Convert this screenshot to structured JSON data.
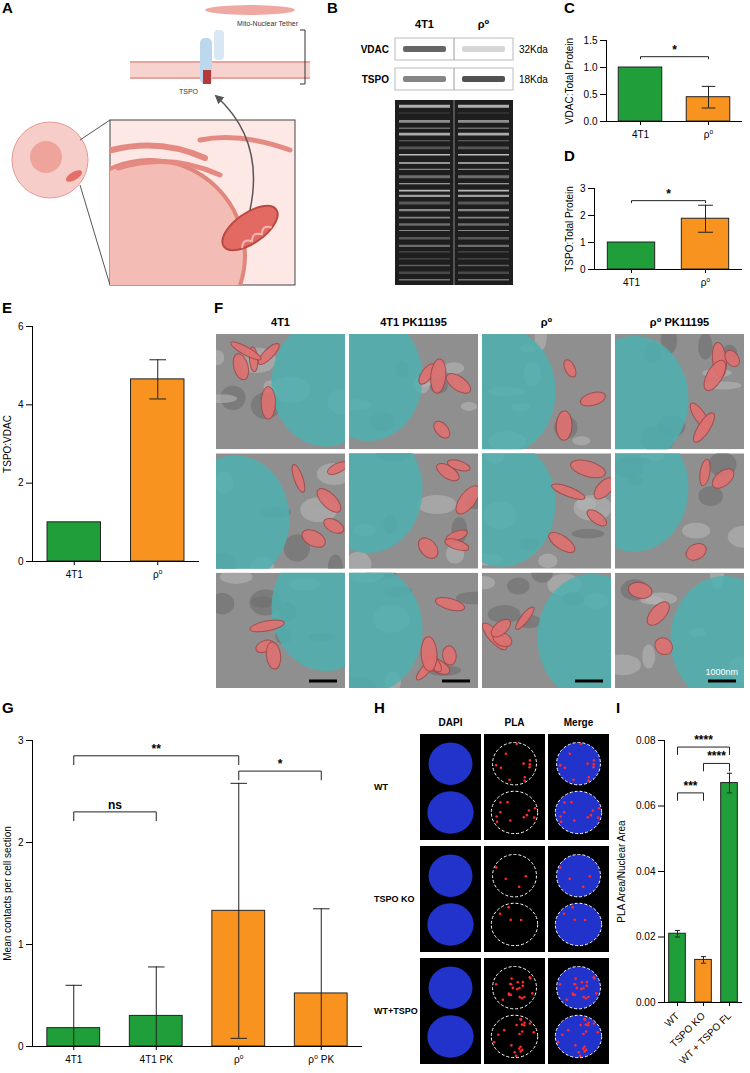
{
  "panels": [
    {
      "label": "A",
      "texts": [
        "Mito-Nuclear Tether",
        "TSPO"
      ]
    },
    {
      "label": "B",
      "lanes": [
        "4T1",
        "ρ⁰"
      ],
      "bands": [
        {
          "name": "VDAC",
          "size": "32Kda"
        },
        {
          "name": "TSPO",
          "size": "18Kda"
        }
      ]
    },
    {
      "label": "F",
      "columns": [
        "4T1",
        "4T1 PK11195",
        "ρ⁰",
        "ρ⁰ PK11195"
      ],
      "scale_bar": "1000nm"
    },
    {
      "label": "H",
      "columns": [
        "DAPI",
        "PLA",
        "Merge"
      ],
      "rows": [
        "WT",
        "TSPO KO",
        "WT+TSPO"
      ]
    }
  ],
  "chart_data": [
    {
      "panel": "C",
      "type": "bar",
      "y_label": "VDAC:Total Protein",
      "categories": [
        "4T1",
        "ρ⁰"
      ],
      "values": [
        1.0,
        0.45
      ],
      "errors": [
        null,
        0.2
      ],
      "colors": [
        "#1f9e3a",
        "#f7931e"
      ],
      "ylim": [
        0,
        1.5
      ],
      "yticks": [
        {
          "value": 0,
          "label": "0.0"
        },
        {
          "value": 0.5,
          "label": "0.5"
        },
        {
          "value": 1,
          "label": "1.0"
        },
        {
          "value": 1.5,
          "label": "1.5"
        }
      ],
      "annotations": [
        {
          "text": "*",
          "from": "4T1",
          "to": "ρ⁰",
          "y": 1.2
        }
      ]
    },
    {
      "panel": "D",
      "type": "bar",
      "y_label": "TSPO:Total Protein",
      "categories": [
        "4T1",
        "ρ⁰"
      ],
      "values": [
        1.0,
        1.88
      ],
      "errors": [
        null,
        0.5
      ],
      "colors": [
        "#1f9e3a",
        "#f7931e"
      ],
      "ylim": [
        0,
        3
      ],
      "yticks": [
        0,
        1,
        2,
        3
      ],
      "annotations": [
        {
          "text": "*",
          "from": "4T1",
          "to": "ρ⁰",
          "y": 2.55
        }
      ]
    },
    {
      "panel": "E",
      "type": "bar",
      "y_label": "TSPO:VDAC",
      "categories": [
        "4T1",
        "ρ⁰"
      ],
      "values": [
        1.0,
        4.65
      ],
      "errors": [
        null,
        0.5
      ],
      "colors": [
        "#1f9e3a",
        "#f7931e"
      ],
      "ylim": [
        0,
        6
      ],
      "yticks": [
        0,
        2,
        4,
        6
      ],
      "annotations": []
    },
    {
      "panel": "G",
      "type": "bar",
      "y_label": "Mean contacts per cell section",
      "categories": [
        "4T1",
        "4T1 PK",
        "ρ⁰",
        "ρ⁰ PK"
      ],
      "values": [
        0.18,
        0.3,
        1.33,
        0.52
      ],
      "errors": [
        0.42,
        0.48,
        1.25,
        0.83
      ],
      "colors": [
        "#1f9e3a",
        "#1f9e3a",
        "#f7931e",
        "#f7931e"
      ],
      "ylim": [
        0,
        3
      ],
      "yticks": [
        0,
        1,
        2,
        3
      ],
      "annotations": [
        {
          "text": "ns",
          "from": "4T1",
          "to": "4T1 PK",
          "y": 2.3
        },
        {
          "text": "**",
          "from": "4T1",
          "to": "ρ⁰",
          "y": 2.85
        },
        {
          "text": "*",
          "from": "ρ⁰",
          "to": "ρ⁰ PK",
          "y": 2.7
        }
      ]
    },
    {
      "panel": "I",
      "type": "bar",
      "y_label": "PLA Area/Nuclear Area",
      "categories": [
        "WT",
        "TSPO KO",
        "WT + TSPO FL"
      ],
      "values": [
        0.021,
        0.013,
        0.067
      ],
      "errors": [
        0.001,
        0.001,
        0.003
      ],
      "colors": [
        "#1f9e3a",
        "#f7931e",
        "#1f9e3a"
      ],
      "ylim": [
        0,
        0.08
      ],
      "yticks": [
        {
          "value": 0,
          "label": "0.00"
        },
        {
          "value": 0.02,
          "label": "0.02"
        },
        {
          "value": 0.04,
          "label": "0.04"
        },
        {
          "value": 0.06,
          "label": "0.06"
        },
        {
          "value": 0.08,
          "label": "0.08"
        }
      ],
      "annotations": [
        {
          "text": "***",
          "from": "WT",
          "to": "TSPO KO",
          "y": 0.064
        },
        {
          "text": "****",
          "from": "TSPO KO",
          "to": "WT + TSPO FL",
          "y": 0.073
        },
        {
          "text": "****",
          "from": "WT",
          "to": "WT + TSPO FL",
          "y": 0.078
        }
      ]
    }
  ]
}
